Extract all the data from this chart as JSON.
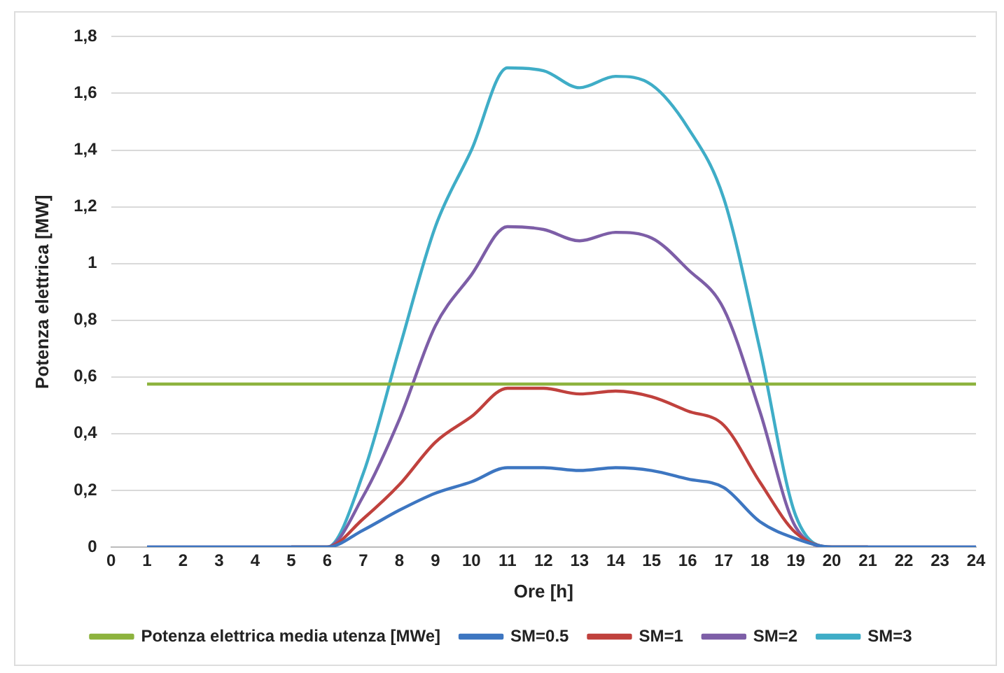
{
  "chart_data": {
    "type": "line",
    "xlabel": "Ore [h]",
    "ylabel": "Potenza elettrica [MW]",
    "x": [
      1,
      2,
      3,
      4,
      5,
      6,
      7,
      8,
      9,
      10,
      11,
      12,
      13,
      14,
      15,
      16,
      17,
      18,
      19,
      20,
      21,
      22,
      23,
      24
    ],
    "series": [
      {
        "name": "Potenza elettrica media utenza [MWe]",
        "color": "#8db33e",
        "values": [
          0.575,
          0.575,
          0.575,
          0.575,
          0.575,
          0.575,
          0.575,
          0.575,
          0.575,
          0.575,
          0.575,
          0.575,
          0.575,
          0.575,
          0.575,
          0.575,
          0.575,
          0.575,
          0.575,
          0.575,
          0.575,
          0.575,
          0.575,
          0.575
        ]
      },
      {
        "name": "SM=0.5",
        "color": "#3d76c1",
        "values": [
          0,
          0,
          0,
          0,
          0,
          0,
          0.06,
          0.13,
          0.19,
          0.23,
          0.28,
          0.28,
          0.27,
          0.28,
          0.27,
          0.24,
          0.21,
          0.09,
          0.03,
          0,
          0,
          0,
          0,
          0
        ]
      },
      {
        "name": "SM=1",
        "color": "#c0413d",
        "values": [
          null,
          null,
          null,
          null,
          0,
          0,
          0.1,
          0.22,
          0.37,
          0.46,
          0.56,
          0.56,
          0.54,
          0.55,
          0.53,
          0.48,
          0.43,
          0.23,
          0.05,
          0,
          0,
          null,
          null,
          null
        ]
      },
      {
        "name": "SM=2",
        "color": "#7d5ea7",
        "values": [
          0,
          0,
          0,
          0,
          0,
          0,
          0.18,
          0.45,
          0.78,
          0.96,
          1.13,
          1.12,
          1.08,
          1.11,
          1.09,
          0.98,
          0.84,
          0.48,
          0.07,
          0,
          0,
          0,
          0,
          0
        ]
      },
      {
        "name": "SM=3",
        "color": "#3fadc7",
        "values": [
          null,
          null,
          null,
          null,
          0,
          0,
          0.26,
          0.7,
          1.13,
          1.4,
          1.69,
          1.68,
          1.62,
          1.66,
          1.63,
          1.48,
          1.23,
          0.7,
          0.11,
          0,
          0,
          null,
          null,
          null
        ]
      }
    ],
    "xlim": [
      0,
      24
    ],
    "xticks": [
      0,
      1,
      2,
      3,
      4,
      5,
      6,
      7,
      8,
      9,
      10,
      11,
      12,
      13,
      14,
      15,
      16,
      17,
      18,
      19,
      20,
      21,
      22,
      23,
      24
    ],
    "ylim": [
      0,
      1.8
    ],
    "yticks": [
      {
        "value": 0,
        "label": "0"
      },
      {
        "value": 0.2,
        "label": "0,2"
      },
      {
        "value": 0.4,
        "label": "0,4"
      },
      {
        "value": 0.6,
        "label": "0,6"
      },
      {
        "value": 0.8,
        "label": "0,8"
      },
      {
        "value": 1,
        "label": "1"
      },
      {
        "value": 1.2,
        "label": "1,2"
      },
      {
        "value": 1.4,
        "label": "1,4"
      },
      {
        "value": 1.6,
        "label": "1,6"
      },
      {
        "value": 1.8,
        "label": "1,8"
      }
    ],
    "grid": "y",
    "legend": "bottom",
    "marker": "none",
    "line_style": "solid"
  }
}
